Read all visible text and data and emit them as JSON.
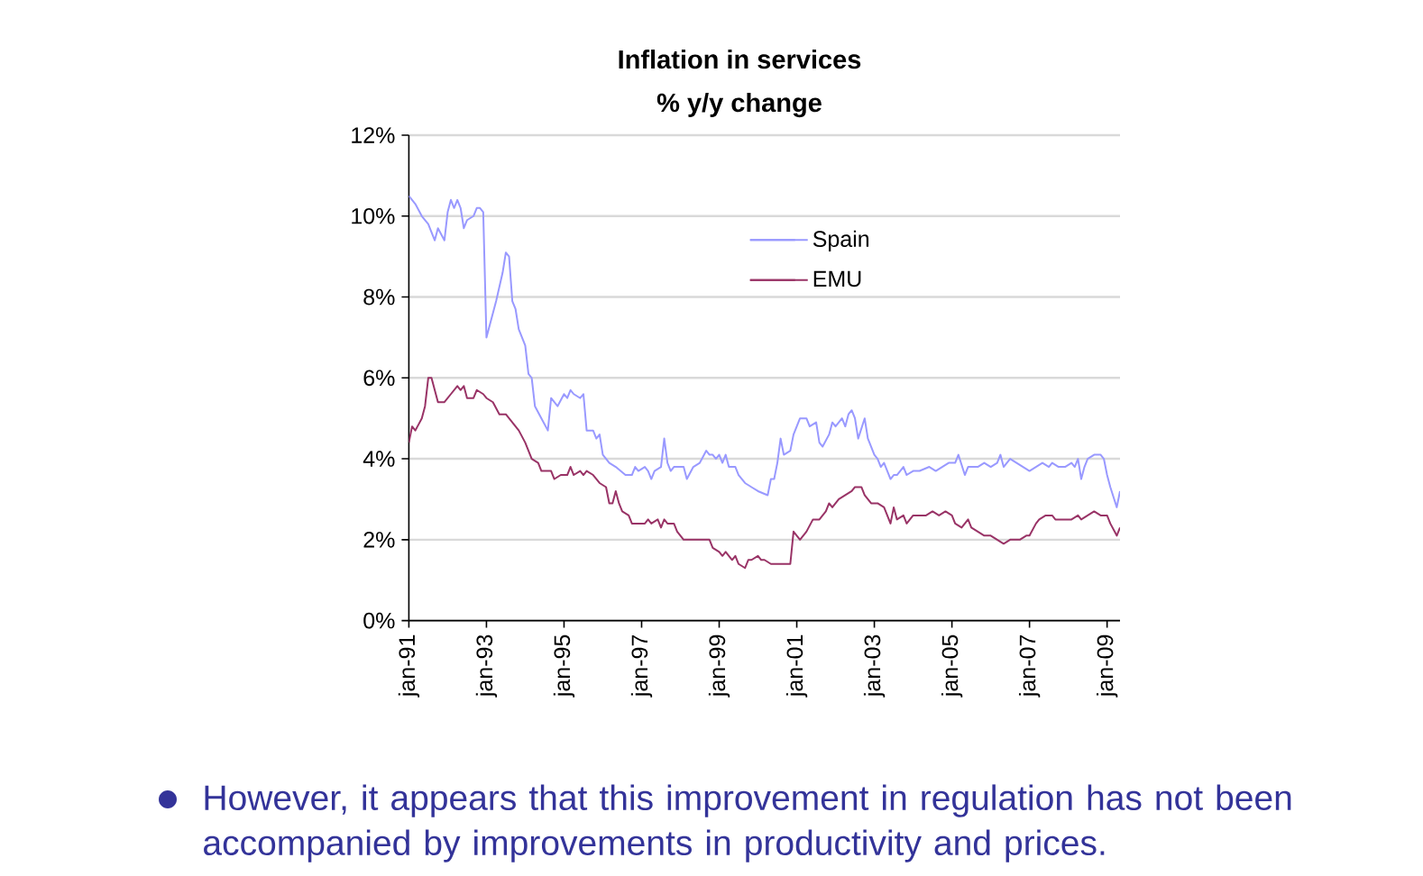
{
  "chart_data": {
    "type": "line",
    "title": "Inflation in services",
    "subtitle": "% y/y change",
    "xlim": [
      "1991-01",
      "2009-05"
    ],
    "xticks": [
      {
        "value": "1991-01",
        "label": "jan-91"
      },
      {
        "value": "1993-01",
        "label": "jan-93"
      },
      {
        "value": "1995-01",
        "label": "jan-95"
      },
      {
        "value": "1997-01",
        "label": "jan-97"
      },
      {
        "value": "1999-01",
        "label": "jan-99"
      },
      {
        "value": "2001-01",
        "label": "jan-01"
      },
      {
        "value": "2003-01",
        "label": "jan-03"
      },
      {
        "value": "2005-01",
        "label": "jan-05"
      },
      {
        "value": "2007-01",
        "label": "jan-07"
      },
      {
        "value": "2009-01",
        "label": "jan-09"
      }
    ],
    "ylim": [
      0,
      12
    ],
    "yticks": [
      {
        "value": 0,
        "label": "0%"
      },
      {
        "value": 2,
        "label": "2%"
      },
      {
        "value": 4,
        "label": "4%"
      },
      {
        "value": 6,
        "label": "6%"
      },
      {
        "value": 8,
        "label": "8%"
      },
      {
        "value": 10,
        "label": "10%"
      },
      {
        "value": 12,
        "label": "12%"
      }
    ],
    "grid": "y",
    "legend": "top",
    "series": [
      {
        "name": "Spain",
        "color": "#9999ff",
        "x": [
          "1991-01",
          "1991-03",
          "1991-05",
          "1991-07",
          "1991-09",
          "1991-10",
          "1991-12",
          "1992-01",
          "1992-02",
          "1992-03",
          "1992-04",
          "1992-05",
          "1992-06",
          "1992-07",
          "1992-09",
          "1992-10",
          "1992-11",
          "1992-12",
          "1993-01",
          "1993-02",
          "1993-04",
          "1993-06",
          "1993-07",
          "1993-08",
          "1993-09",
          "1993-10",
          "1993-11",
          "1994-01",
          "1994-02",
          "1994-03",
          "1994-04",
          "1994-06",
          "1994-08",
          "1994-09",
          "1994-10",
          "1994-11",
          "1995-01",
          "1995-02",
          "1995-03",
          "1995-04",
          "1995-06",
          "1995-07",
          "1995-08",
          "1995-10",
          "1995-11",
          "1995-12",
          "1996-01",
          "1996-03",
          "1996-05",
          "1996-08",
          "1996-10",
          "1996-11",
          "1996-12",
          "1997-02",
          "1997-03",
          "1997-04",
          "1997-05",
          "1997-07",
          "1997-08",
          "1997-09",
          "1997-10",
          "1997-11",
          "1997-12",
          "1998-02",
          "1998-03",
          "1998-05",
          "1998-07",
          "1998-09",
          "1998-10",
          "1998-11",
          "1998-12",
          "1999-01",
          "1999-02",
          "1999-03",
          "1999-04",
          "1999-06",
          "1999-07",
          "1999-09",
          "1999-11",
          "2000-01",
          "2000-04",
          "2000-05",
          "2000-06",
          "2000-07",
          "2000-08",
          "2000-09",
          "2000-11",
          "2000-12",
          "2001-02",
          "2001-04",
          "2001-05",
          "2001-07",
          "2001-08",
          "2001-09",
          "2001-11",
          "2001-12",
          "2002-01",
          "2002-03",
          "2002-04",
          "2002-05",
          "2002-06",
          "2002-07",
          "2002-08",
          "2002-10",
          "2002-11",
          "2003-01",
          "2003-02",
          "2003-03",
          "2003-04",
          "2003-06",
          "2003-07",
          "2003-08",
          "2003-10",
          "2003-11",
          "2004-01",
          "2004-03",
          "2004-06",
          "2004-08",
          "2004-10",
          "2004-12",
          "2005-02",
          "2005-03",
          "2005-05",
          "2005-06",
          "2005-09",
          "2005-11",
          "2006-01",
          "2006-03",
          "2006-04",
          "2006-05",
          "2006-07",
          "2006-09",
          "2006-11",
          "2007-01",
          "2007-03",
          "2007-05",
          "2007-07",
          "2007-08",
          "2007-10",
          "2007-12",
          "2008-02",
          "2008-03",
          "2008-04",
          "2008-05",
          "2008-06",
          "2008-07",
          "2008-09",
          "2008-11",
          "2008-12",
          "2009-01",
          "2009-02",
          "2009-04",
          "2009-05"
        ],
        "values": [
          10.5,
          10.3,
          10.0,
          9.8,
          9.4,
          9.7,
          9.4,
          10.1,
          10.4,
          10.2,
          10.4,
          10.2,
          9.7,
          9.9,
          10.0,
          10.2,
          10.2,
          10.1,
          7.0,
          7.3,
          7.9,
          8.6,
          9.1,
          9.0,
          7.9,
          7.7,
          7.2,
          6.8,
          6.1,
          6.0,
          5.3,
          5.0,
          4.7,
          5.5,
          5.4,
          5.3,
          5.6,
          5.5,
          5.7,
          5.6,
          5.5,
          5.6,
          4.7,
          4.7,
          4.5,
          4.6,
          4.1,
          3.9,
          3.8,
          3.6,
          3.6,
          3.8,
          3.7,
          3.8,
          3.7,
          3.5,
          3.7,
          3.8,
          4.5,
          3.9,
          3.7,
          3.8,
          3.8,
          3.8,
          3.5,
          3.8,
          3.9,
          4.2,
          4.1,
          4.1,
          4.0,
          4.1,
          3.9,
          4.1,
          3.8,
          3.8,
          3.6,
          3.4,
          3.3,
          3.2,
          3.1,
          3.5,
          3.5,
          3.9,
          4.5,
          4.1,
          4.2,
          4.6,
          5.0,
          5.0,
          4.8,
          4.9,
          4.4,
          4.3,
          4.6,
          4.9,
          4.8,
          5.0,
          4.8,
          5.1,
          5.2,
          5.0,
          4.5,
          5.0,
          4.5,
          4.1,
          4.0,
          3.8,
          3.9,
          3.5,
          3.6,
          3.6,
          3.8,
          3.6,
          3.7,
          3.7,
          3.8,
          3.7,
          3.8,
          3.9,
          3.9,
          4.1,
          3.6,
          3.8,
          3.8,
          3.9,
          3.8,
          3.9,
          4.1,
          3.8,
          4.0,
          3.9,
          3.8,
          3.7,
          3.8,
          3.9,
          3.8,
          3.9,
          3.8,
          3.8,
          3.9,
          3.8,
          4.0,
          3.5,
          3.8,
          4.0,
          4.1,
          4.1,
          4.0,
          3.6,
          3.3,
          2.8,
          3.2
        ]
      },
      {
        "name": "EMU",
        "color": "#993366",
        "x": [
          "1991-01",
          "1991-02",
          "1991-03",
          "1991-05",
          "1991-06",
          "1991-07",
          "1991-08",
          "1991-10",
          "1991-12",
          "1992-02",
          "1992-04",
          "1992-05",
          "1992-06",
          "1992-07",
          "1992-09",
          "1992-10",
          "1992-12",
          "1993-01",
          "1993-03",
          "1993-05",
          "1993-07",
          "1993-09",
          "1993-10",
          "1993-11",
          "1994-01",
          "1994-02",
          "1994-03",
          "1994-05",
          "1994-06",
          "1994-07",
          "1994-09",
          "1994-10",
          "1994-12",
          "1995-02",
          "1995-03",
          "1995-04",
          "1995-06",
          "1995-07",
          "1995-08",
          "1995-10",
          "1995-12",
          "1996-02",
          "1996-03",
          "1996-04",
          "1996-05",
          "1996-06",
          "1996-07",
          "1996-09",
          "1996-10",
          "1996-12",
          "1997-02",
          "1997-03",
          "1997-04",
          "1997-06",
          "1997-07",
          "1997-08",
          "1997-09",
          "1997-11",
          "1997-12",
          "1998-02",
          "1998-04",
          "1998-06",
          "1998-08",
          "1998-10",
          "1998-11",
          "1999-01",
          "1999-02",
          "1999-03",
          "1999-05",
          "1999-06",
          "1999-07",
          "1999-09",
          "1999-10",
          "1999-11",
          "2000-01",
          "2000-02",
          "2000-03",
          "2000-05",
          "2000-06",
          "2000-09",
          "2000-11",
          "2000-12",
          "2001-02",
          "2001-04",
          "2001-06",
          "2001-08",
          "2001-10",
          "2001-11",
          "2001-12",
          "2002-02",
          "2002-04",
          "2002-06",
          "2002-07",
          "2002-09",
          "2002-10",
          "2002-12",
          "2003-02",
          "2003-04",
          "2003-06",
          "2003-07",
          "2003-08",
          "2003-10",
          "2003-11",
          "2004-01",
          "2004-03",
          "2004-05",
          "2004-07",
          "2004-09",
          "2004-11",
          "2005-01",
          "2005-02",
          "2005-04",
          "2005-06",
          "2005-07",
          "2005-09",
          "2005-11",
          "2006-01",
          "2006-03",
          "2006-05",
          "2006-07",
          "2006-08",
          "2006-10",
          "2006-12",
          "2007-01",
          "2007-03",
          "2007-04",
          "2007-06",
          "2007-08",
          "2007-09",
          "2007-11",
          "2008-01",
          "2008-02",
          "2008-04",
          "2008-05",
          "2008-07",
          "2008-09",
          "2008-11",
          "2009-01",
          "2009-02",
          "2009-04",
          "2009-05"
        ],
        "values": [
          4.4,
          4.8,
          4.7,
          5.0,
          5.3,
          6.0,
          6.0,
          5.4,
          5.4,
          5.6,
          5.8,
          5.7,
          5.8,
          5.5,
          5.5,
          5.7,
          5.6,
          5.5,
          5.4,
          5.1,
          5.1,
          4.9,
          4.8,
          4.7,
          4.4,
          4.2,
          4.0,
          3.9,
          3.7,
          3.7,
          3.7,
          3.5,
          3.6,
          3.6,
          3.8,
          3.6,
          3.7,
          3.6,
          3.7,
          3.6,
          3.4,
          3.3,
          2.9,
          2.9,
          3.2,
          2.9,
          2.7,
          2.6,
          2.4,
          2.4,
          2.4,
          2.5,
          2.4,
          2.5,
          2.3,
          2.5,
          2.4,
          2.4,
          2.2,
          2.0,
          2.0,
          2.0,
          2.0,
          2.0,
          1.8,
          1.7,
          1.6,
          1.7,
          1.5,
          1.6,
          1.4,
          1.3,
          1.5,
          1.5,
          1.6,
          1.5,
          1.5,
          1.4,
          1.4,
          1.4,
          1.4,
          2.2,
          2.0,
          2.2,
          2.5,
          2.5,
          2.7,
          2.9,
          2.8,
          3.0,
          3.1,
          3.2,
          3.3,
          3.3,
          3.1,
          2.9,
          2.9,
          2.8,
          2.4,
          2.8,
          2.5,
          2.6,
          2.4,
          2.6,
          2.6,
          2.6,
          2.7,
          2.6,
          2.7,
          2.6,
          2.4,
          2.3,
          2.5,
          2.3,
          2.2,
          2.1,
          2.1,
          2.0,
          1.9,
          2.0,
          2.0,
          2.0,
          2.1,
          2.1,
          2.4,
          2.5,
          2.6,
          2.6,
          2.5,
          2.5,
          2.5,
          2.5,
          2.6,
          2.5,
          2.6,
          2.7,
          2.6,
          2.6,
          2.4,
          2.1,
          2.3
        ]
      }
    ],
    "annotations": [
      "However, it appears that this improvement in regulation has not been accompanied by improvements in productivity and prices."
    ]
  }
}
